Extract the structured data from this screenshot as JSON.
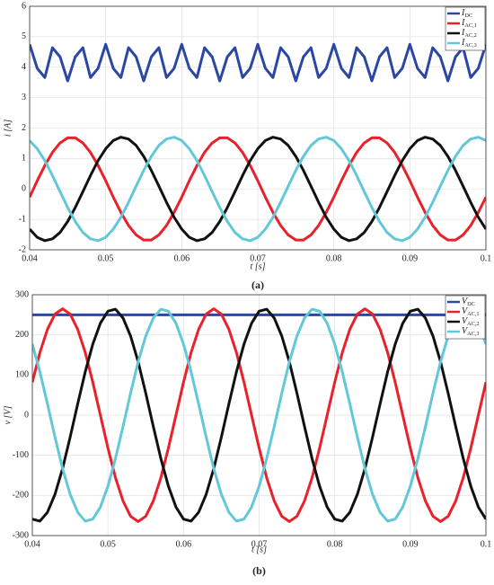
{
  "chart_data": [
    {
      "type": "line",
      "caption": "(a)",
      "xlabel": "t [s]",
      "ylabel": "i [A]",
      "xlim": [
        0.04,
        0.1
      ],
      "ylim": [
        -2,
        6
      ],
      "xticks": [
        0.04,
        0.05,
        0.06,
        0.07,
        0.08,
        0.09,
        0.1
      ],
      "yticks": [
        -2,
        -1,
        0,
        1,
        2,
        3,
        4,
        5,
        6
      ],
      "grid": true,
      "legend": "upper right",
      "x": [
        0.04,
        0.041,
        0.042,
        0.043,
        0.044,
        0.045,
        0.046,
        0.047,
        0.048,
        0.049,
        0.05,
        0.051,
        0.052,
        0.053,
        0.054,
        0.055,
        0.056,
        0.057,
        0.058,
        0.059,
        0.06,
        0.061,
        0.062,
        0.063,
        0.064,
        0.065,
        0.066,
        0.067,
        0.068,
        0.069,
        0.07,
        0.071,
        0.072,
        0.073,
        0.074,
        0.075,
        0.076,
        0.077,
        0.078,
        0.079,
        0.08,
        0.081,
        0.082,
        0.083,
        0.084,
        0.085,
        0.086,
        0.087,
        0.088,
        0.089,
        0.09,
        0.091,
        0.092,
        0.093,
        0.094,
        0.095,
        0.096,
        0.097,
        0.098,
        0.099,
        0.1
      ],
      "series": [
        {
          "name": "IDC",
          "color": "#2b47a3",
          "values": [
            4.75,
            3.96,
            3.66,
            4.64,
            4.34,
            3.55,
            4.34,
            4.64,
            3.66,
            3.96,
            4.75,
            3.96,
            3.66,
            4.64,
            4.34,
            3.55,
            4.34,
            4.64,
            3.66,
            3.96,
            4.75,
            3.96,
            3.66,
            4.64,
            4.34,
            3.55,
            4.34,
            4.64,
            3.66,
            3.96,
            4.75,
            3.96,
            3.66,
            4.64,
            4.34,
            3.55,
            4.34,
            4.64,
            3.66,
            3.96,
            4.75,
            3.96,
            3.66,
            4.64,
            4.34,
            3.55,
            4.34,
            4.64,
            3.66,
            3.96,
            4.75,
            3.96,
            3.66,
            4.64,
            4.34,
            3.55,
            4.34,
            4.64,
            3.66,
            3.96,
            4.75
          ]
        },
        {
          "name": "IAC,1",
          "color": "#e8212b",
          "values": [
            -0.27,
            0.27,
            0.77,
            1.2,
            1.51,
            1.68,
            1.68,
            1.51,
            1.2,
            0.77,
            0.27,
            -0.27,
            -0.77,
            -1.2,
            -1.51,
            -1.68,
            -1.68,
            -1.51,
            -1.2,
            -0.77,
            -0.27,
            0.27,
            0.77,
            1.2,
            1.51,
            1.68,
            1.68,
            1.51,
            1.2,
            0.77,
            0.27,
            -0.27,
            -0.77,
            -1.2,
            -1.51,
            -1.68,
            -1.68,
            -1.51,
            -1.2,
            -0.77,
            -0.27,
            0.27,
            0.77,
            1.2,
            1.51,
            1.68,
            1.68,
            1.51,
            1.2,
            0.77,
            0.27,
            -0.27,
            -0.77,
            -1.2,
            -1.51,
            -1.68,
            -1.68,
            -1.51,
            -1.2,
            -0.77,
            -0.27
          ]
        },
        {
          "name": "IAC,2",
          "color": "#111111",
          "values": [
            -1.32,
            -1.59,
            -1.7,
            -1.64,
            -1.43,
            -1.07,
            -0.61,
            -0.09,
            0.44,
            0.93,
            1.32,
            1.59,
            1.7,
            1.64,
            1.43,
            1.07,
            0.61,
            0.09,
            -0.44,
            -0.93,
            -1.32,
            -1.59,
            -1.7,
            -1.64,
            -1.43,
            -1.07,
            -0.61,
            -0.09,
            0.44,
            0.93,
            1.32,
            1.59,
            1.7,
            1.64,
            1.43,
            1.07,
            0.61,
            0.09,
            -0.44,
            -0.93,
            -1.32,
            -1.59,
            -1.7,
            -1.64,
            -1.43,
            -1.07,
            -0.61,
            -0.09,
            0.44,
            0.93,
            1.32,
            1.59,
            1.7,
            1.64,
            1.43,
            1.07,
            0.61,
            0.09,
            -0.44,
            -0.93,
            -1.32
          ]
        },
        {
          "name": "IAC,3",
          "color": "#62c8d8",
          "values": [
            1.59,
            1.32,
            0.93,
            0.44,
            -0.09,
            -0.61,
            -1.07,
            -1.43,
            -1.64,
            -1.7,
            -1.59,
            -1.32,
            -0.93,
            -0.44,
            0.09,
            0.61,
            1.07,
            1.43,
            1.64,
            1.7,
            1.59,
            1.32,
            0.93,
            0.44,
            -0.09,
            -0.61,
            -1.07,
            -1.43,
            -1.64,
            -1.7,
            -1.59,
            -1.32,
            -0.93,
            -0.44,
            0.09,
            0.61,
            1.07,
            1.43,
            1.64,
            1.7,
            1.59,
            1.32,
            0.93,
            0.44,
            -0.09,
            -0.61,
            -1.07,
            -1.43,
            -1.64,
            -1.7,
            -1.59,
            -1.32,
            -0.93,
            -0.44,
            0.09,
            0.61,
            1.07,
            1.43,
            1.64,
            1.7,
            1.59
          ]
        }
      ]
    },
    {
      "type": "line",
      "caption": "(b)",
      "xlabel": "t [s]",
      "ylabel": "v [V]",
      "xlim": [
        0.04,
        0.1
      ],
      "ylim": [
        -300,
        300
      ],
      "xticks": [
        0.04,
        0.05,
        0.06,
        0.07,
        0.08,
        0.09,
        0.1
      ],
      "yticks": [
        -300,
        -200,
        -100,
        0,
        100,
        200,
        300
      ],
      "grid": true,
      "legend": "upper right",
      "x": [
        0.04,
        0.041,
        0.042,
        0.043,
        0.044,
        0.045,
        0.046,
        0.047,
        0.048,
        0.049,
        0.05,
        0.051,
        0.052,
        0.053,
        0.054,
        0.055,
        0.056,
        0.057,
        0.058,
        0.059,
        0.06,
        0.061,
        0.062,
        0.063,
        0.064,
        0.065,
        0.066,
        0.067,
        0.068,
        0.069,
        0.07,
        0.071,
        0.072,
        0.073,
        0.074,
        0.075,
        0.076,
        0.077,
        0.078,
        0.079,
        0.08,
        0.081,
        0.082,
        0.083,
        0.084,
        0.085,
        0.086,
        0.087,
        0.088,
        0.089,
        0.09,
        0.091,
        0.092,
        0.093,
        0.094,
        0.095,
        0.096,
        0.097,
        0.098,
        0.099,
        0.1
      ],
      "series": [
        {
          "name": "VDC",
          "color": "#2b47a3",
          "values": [
            250,
            250,
            250,
            250,
            250,
            250,
            250,
            250,
            250,
            250,
            250,
            250,
            250,
            250,
            250,
            250,
            250,
            250,
            250,
            250,
            250,
            250,
            250,
            250,
            250,
            250,
            250,
            250,
            250,
            250,
            250,
            250,
            250,
            250,
            250,
            250,
            250,
            250,
            250,
            250,
            250,
            250,
            250,
            250,
            250,
            250,
            250,
            250,
            250,
            250,
            250,
            250,
            250,
            250,
            250,
            250,
            250,
            250,
            250,
            250,
            250
          ]
        },
        {
          "name": "VAC,1",
          "color": "#e8212b",
          "values": [
            82,
            156,
            214,
            252,
            265,
            252,
            214,
            156,
            82,
            0,
            -82,
            -156,
            -214,
            -252,
            -265,
            -252,
            -214,
            -156,
            -82,
            0,
            82,
            156,
            214,
            252,
            265,
            252,
            214,
            156,
            82,
            0,
            -82,
            -156,
            -214,
            -252,
            -265,
            -252,
            -214,
            -156,
            -82,
            0,
            82,
            156,
            214,
            252,
            265,
            252,
            214,
            156,
            82,
            0,
            -82,
            -156,
            -214,
            -252,
            -265,
            -252,
            -214,
            -156,
            -82,
            0,
            82
          ]
        },
        {
          "name": "VAC,2",
          "color": "#111111",
          "values": [
            -259,
            -264,
            -242,
            -197,
            -133,
            -55,
            28,
            108,
            177,
            229,
            259,
            264,
            242,
            197,
            133,
            55,
            -28,
            -108,
            -177,
            -229,
            -259,
            -264,
            -242,
            -197,
            -133,
            -55,
            28,
            108,
            177,
            229,
            259,
            264,
            242,
            197,
            133,
            55,
            -28,
            -108,
            -177,
            -229,
            -259,
            -264,
            -242,
            -197,
            -133,
            -55,
            28,
            108,
            177,
            229,
            259,
            264,
            242,
            197,
            133,
            55,
            -28,
            -108,
            -177,
            -229,
            -259
          ]
        },
        {
          "name": "VAC,3",
          "color": "#62c8d8",
          "values": [
            177,
            108,
            28,
            -55,
            -133,
            -197,
            -242,
            -264,
            -259,
            -229,
            -177,
            -108,
            -28,
            55,
            133,
            197,
            242,
            264,
            259,
            229,
            177,
            108,
            28,
            -55,
            -133,
            -197,
            -242,
            -264,
            -259,
            -229,
            -177,
            -108,
            -28,
            55,
            133,
            197,
            242,
            264,
            259,
            229,
            177,
            108,
            28,
            -55,
            -133,
            -197,
            -242,
            -264,
            -259,
            -229,
            -177,
            -108,
            -28,
            55,
            133,
            197,
            242,
            264,
            259,
            229,
            177
          ]
        }
      ]
    }
  ]
}
